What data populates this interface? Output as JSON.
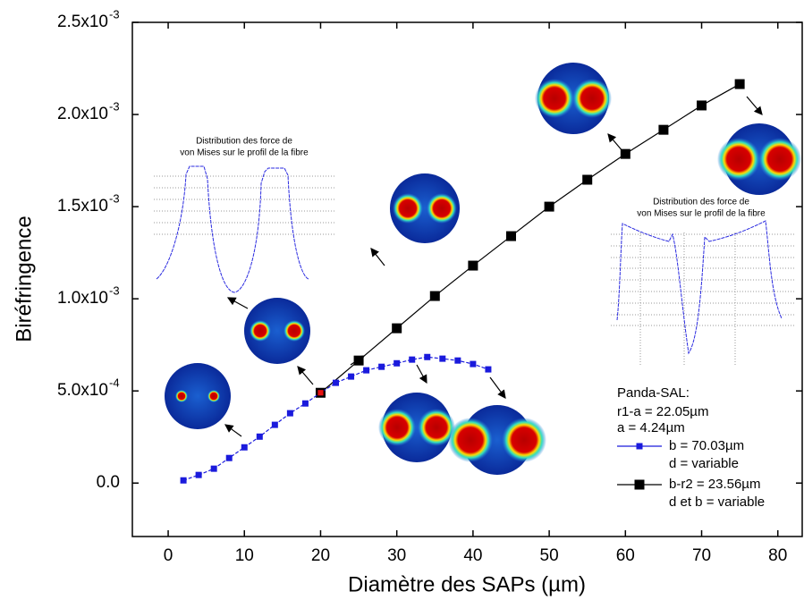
{
  "chart_data": {
    "type": "line",
    "x_label": "Diamètre des SAPs (µm)",
    "y_label": "Biréfringence",
    "xlim": [
      -4.7,
      83.2
    ],
    "ylim": [
      -0.00029,
      0.0025
    ],
    "xticks": [
      0,
      10,
      20,
      30,
      40,
      50,
      60,
      70,
      80
    ],
    "yticks": [
      {
        "value": 0,
        "label": "0.0"
      },
      {
        "value": 0.0005,
        "label": "5.0x10",
        "exponent": "-4"
      },
      {
        "value": 0.001,
        "label": "1.0x10",
        "exponent": "-3"
      },
      {
        "value": 0.0015,
        "label": "1.5x10",
        "exponent": "-3"
      },
      {
        "value": 0.002,
        "label": "2.0x10",
        "exponent": "-3"
      },
      {
        "value": 0.0025,
        "label": "2.5x10",
        "exponent": "-3"
      }
    ],
    "series": [
      {
        "name": "b = 70.03µm",
        "name_note": "d = variable",
        "color": "#1a1adc",
        "marker_size": 7,
        "x": [
          2,
          4,
          6,
          8,
          10,
          12,
          14,
          16,
          18,
          20,
          22,
          24,
          26,
          28,
          30,
          32,
          34,
          36,
          38,
          40,
          42
        ],
        "values": [
          1.46e-05,
          4.4e-05,
          7.8e-05,
          0.000136,
          0.000194,
          0.000252,
          0.000316,
          0.000379,
          0.000432,
          0.00049,
          0.000544,
          0.000578,
          0.000612,
          0.000631,
          0.00065,
          0.00067,
          0.000684,
          0.000675,
          0.000665,
          0.000646,
          0.000617
        ],
        "dashed": true
      },
      {
        "name": "b-r2 = 23.56µm",
        "name_note": "d et b = variable",
        "color": "#000000",
        "marker_size": 11,
        "x": [
          20,
          25,
          30,
          35,
          40,
          45,
          50,
          55,
          60,
          65,
          70,
          75
        ],
        "values": [
          0.00049,
          0.000665,
          0.00084,
          0.001015,
          0.00118,
          0.00134,
          0.0015,
          0.001646,
          0.001786,
          0.001917,
          0.002049,
          0.002165
        ],
        "dashed": false
      }
    ],
    "highlight_point": {
      "series": 0,
      "index": 9,
      "color": "#e81010"
    },
    "legend": {
      "title": "Panda-SAL:",
      "lines": [
        "r1-a = 22.05µm",
        "a = 4.24µm"
      ]
    },
    "annotations": [
      {
        "lines": [
          "Distribution des force de",
          "von Mises sur le profil de la fibre"
        ]
      },
      {
        "lines": [
          "Distribution des force de",
          "von Mises sur le profil de la fibre"
        ]
      }
    ]
  }
}
